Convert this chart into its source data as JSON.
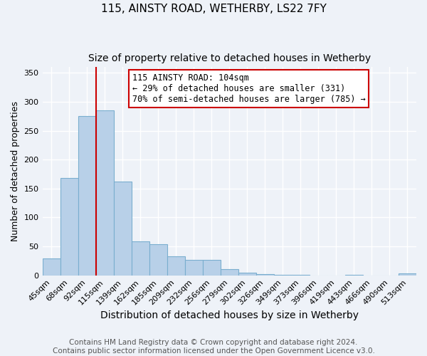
{
  "title": "115, AINSTY ROAD, WETHERBY, LS22 7FY",
  "subtitle": "Size of property relative to detached houses in Wetherby",
  "xlabel": "Distribution of detached houses by size in Wetherby",
  "ylabel": "Number of detached properties",
  "bar_labels": [
    "45sqm",
    "68sqm",
    "92sqm",
    "115sqm",
    "139sqm",
    "162sqm",
    "185sqm",
    "209sqm",
    "232sqm",
    "256sqm",
    "279sqm",
    "302sqm",
    "326sqm",
    "349sqm",
    "373sqm",
    "396sqm",
    "419sqm",
    "443sqm",
    "466sqm",
    "490sqm",
    "513sqm"
  ],
  "bar_values": [
    29,
    168,
    275,
    285,
    162,
    59,
    54,
    33,
    26,
    26,
    10,
    5,
    2,
    1,
    1,
    0,
    0,
    1,
    0,
    0,
    3
  ],
  "bar_color": "#b8d0e8",
  "bar_edge_color": "#7aaecf",
  "vline_idx": 3,
  "vline_color": "#cc0000",
  "annotation_title": "115 AINSTY ROAD: 104sqm",
  "annotation_line1": "← 29% of detached houses are smaller (331)",
  "annotation_line2": "70% of semi-detached houses are larger (785) →",
  "annotation_box_color": "#ffffff",
  "annotation_box_edge": "#cc0000",
  "ylim": [
    0,
    360
  ],
  "yticks": [
    0,
    50,
    100,
    150,
    200,
    250,
    300,
    350
  ],
  "footer1": "Contains HM Land Registry data © Crown copyright and database right 2024.",
  "footer2": "Contains public sector information licensed under the Open Government Licence v3.0.",
  "background_color": "#eef2f8",
  "grid_color": "#ffffff",
  "title_fontsize": 11,
  "subtitle_fontsize": 10,
  "xlabel_fontsize": 10,
  "ylabel_fontsize": 9,
  "tick_fontsize": 8,
  "footer_fontsize": 7.5
}
